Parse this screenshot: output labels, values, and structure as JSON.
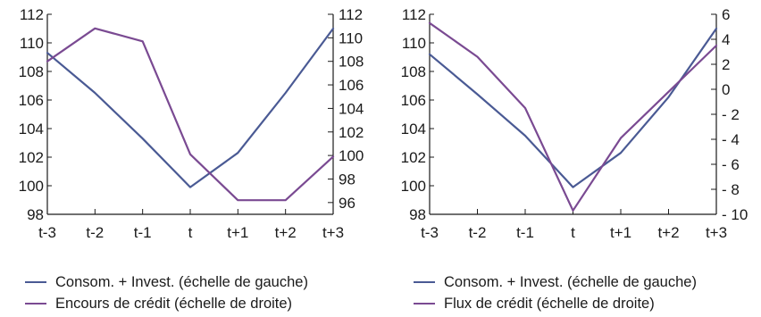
{
  "colors": {
    "series1": "#4a5a94",
    "series2": "#7a4a92",
    "axis": "#1a1a1a"
  },
  "chart_data": [
    {
      "type": "line",
      "x": [
        "t-3",
        "t-2",
        "t-1",
        "t",
        "t+1",
        "t+2",
        "t+3"
      ],
      "left_axis": {
        "ylim": [
          98,
          112
        ],
        "ticks": [
          "98",
          "100",
          "102",
          "104",
          "106",
          "108",
          "110",
          "112"
        ]
      },
      "right_axis": {
        "ylim": [
          95,
          112
        ],
        "ticks": [
          "96",
          "98",
          "100",
          "102",
          "104",
          "106",
          "108",
          "110",
          "112"
        ]
      },
      "grid": false,
      "legend_position": "bottom-left",
      "series": [
        {
          "name": "Consom. + Invest. (échelle de gauche)",
          "axis": "left",
          "color": "#4a5a94",
          "values": [
            109.3,
            106.5,
            103.3,
            99.9,
            102.3,
            106.5,
            111.0
          ]
        },
        {
          "name": "Encours de crédit (échelle de droite)",
          "axis": "right",
          "color": "#7a4a92",
          "values": [
            108.0,
            110.8,
            109.7,
            100.1,
            96.2,
            96.2,
            99.9
          ]
        }
      ]
    },
    {
      "type": "line",
      "x": [
        "t-3",
        "t-2",
        "t-1",
        "t",
        "t+1",
        "t+2",
        "t+3"
      ],
      "left_axis": {
        "ylim": [
          98,
          112
        ],
        "ticks": [
          "98",
          "100",
          "102",
          "104",
          "106",
          "108",
          "110",
          "112"
        ]
      },
      "right_axis": {
        "ylim": [
          -10,
          6
        ],
        "ticks": [
          "- 10",
          "- 8",
          "- 6",
          "- 4",
          "- 2",
          "0",
          "2",
          "4",
          "6"
        ]
      },
      "grid": false,
      "legend_position": "bottom-left",
      "series": [
        {
          "name": "Consom. + Invest. (échelle de gauche)",
          "axis": "left",
          "color": "#4a5a94",
          "values": [
            109.2,
            106.4,
            103.5,
            99.9,
            102.3,
            106.2,
            111.0
          ]
        },
        {
          "name": "Flux de crédit (échelle de droite)",
          "axis": "right",
          "color": "#7a4a92",
          "values": [
            5.3,
            2.6,
            -1.5,
            -9.7,
            -3.9,
            -0.2,
            3.5
          ]
        }
      ]
    }
  ]
}
